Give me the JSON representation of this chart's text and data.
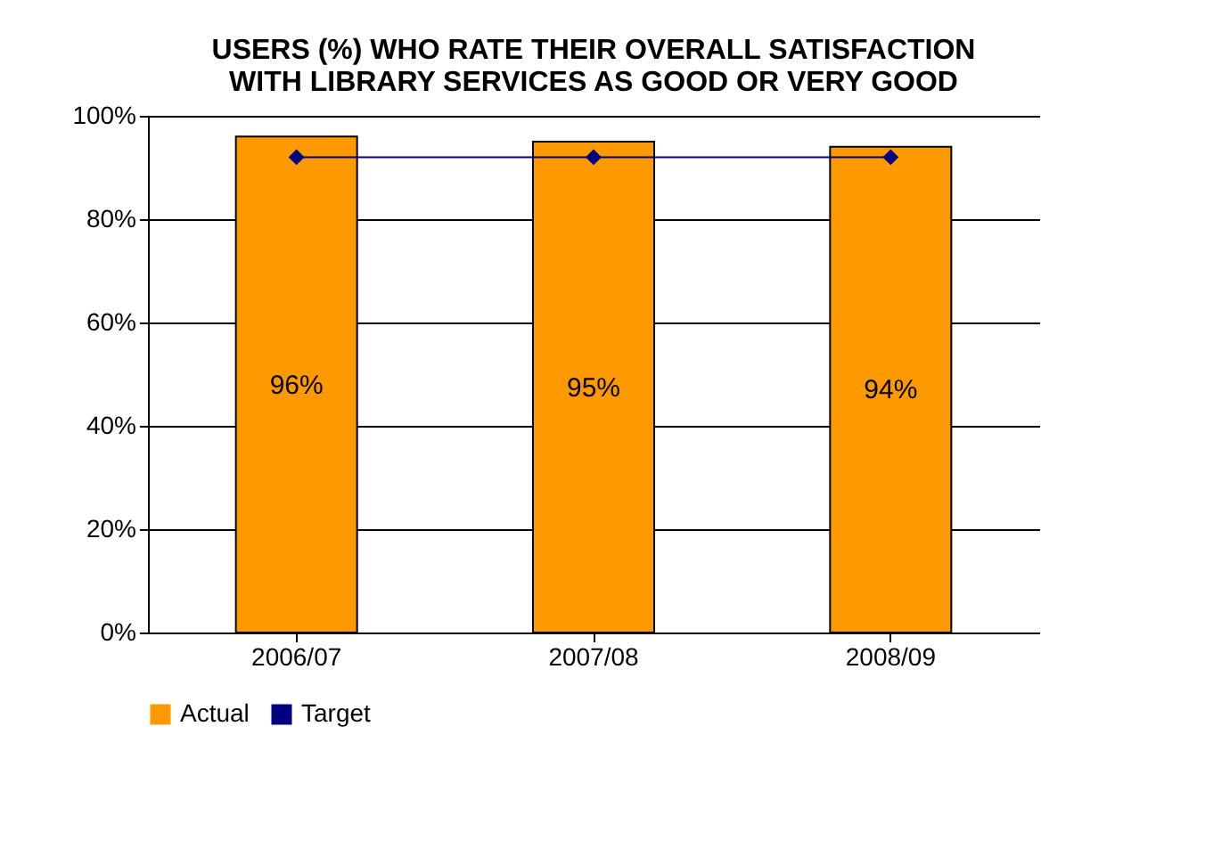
{
  "chart_data": {
    "type": "bar",
    "title": "USERS (%) WHO RATE THEIR OVERALL SATISFACTION\nWITH LIBRARY SERVICES AS GOOD OR VERY GOOD",
    "categories": [
      "2006/07",
      "2007/08",
      "2008/09"
    ],
    "series": [
      {
        "name": "Actual",
        "color": "#ff9900",
        "values": [
          96,
          95,
          94
        ],
        "value_labels": [
          "96%",
          "95%",
          "94%"
        ]
      },
      {
        "name": "Target",
        "type": "line",
        "color": "#000080",
        "values": [
          92,
          92,
          92
        ],
        "marker": "diamond",
        "line_style": "solid"
      }
    ],
    "ylim": [
      0,
      100
    ],
    "yticks": [
      {
        "value": 0,
        "label": "0%"
      },
      {
        "value": 20,
        "label": "20%"
      },
      {
        "value": 40,
        "label": "40%"
      },
      {
        "value": 60,
        "label": "60%"
      },
      {
        "value": 80,
        "label": "80%"
      },
      {
        "value": 100,
        "label": "100%"
      }
    ],
    "grid": "y",
    "legend": "bottom"
  }
}
